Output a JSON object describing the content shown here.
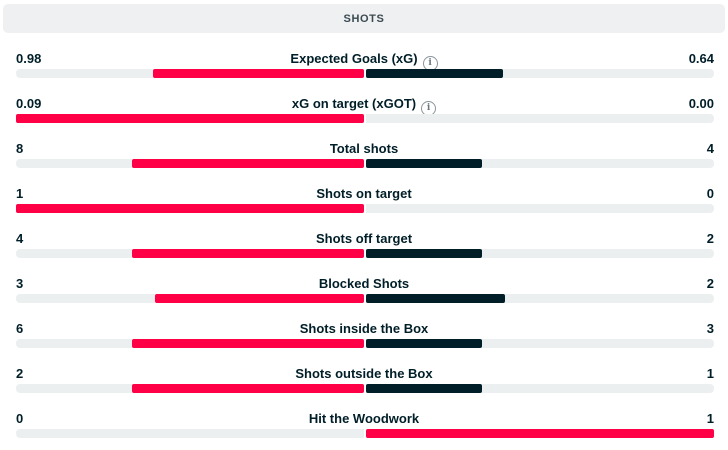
{
  "header": {
    "title": "SHOTS"
  },
  "colors": {
    "leader": "#ff0046",
    "trailer": "#001e28",
    "track": "#eceff0"
  },
  "stats": [
    {
      "label": "Expected Goals (xG)",
      "home": "0.98",
      "away": "0.64",
      "home_num": 0.98,
      "away_num": 0.64,
      "info": true,
      "info_icon": "info-icon"
    },
    {
      "label": "xG on target (xGOT)",
      "home": "0.09",
      "away": "0.00",
      "home_num": 0.09,
      "away_num": 0.0,
      "info": true,
      "info_icon": "info-icon"
    },
    {
      "label": "Total shots",
      "home": "8",
      "away": "4",
      "home_num": 8,
      "away_num": 4
    },
    {
      "label": "Shots on target",
      "home": "1",
      "away": "0",
      "home_num": 1,
      "away_num": 0
    },
    {
      "label": "Shots off target",
      "home": "4",
      "away": "2",
      "home_num": 4,
      "away_num": 2
    },
    {
      "label": "Blocked Shots",
      "home": "3",
      "away": "2",
      "home_num": 3,
      "away_num": 2
    },
    {
      "label": "Shots inside the Box",
      "home": "6",
      "away": "3",
      "home_num": 6,
      "away_num": 3
    },
    {
      "label": "Shots outside the Box",
      "home": "2",
      "away": "1",
      "home_num": 2,
      "away_num": 1
    },
    {
      "label": "Hit the Woodwork",
      "home": "0",
      "away": "1",
      "home_num": 0,
      "away_num": 1
    }
  ]
}
